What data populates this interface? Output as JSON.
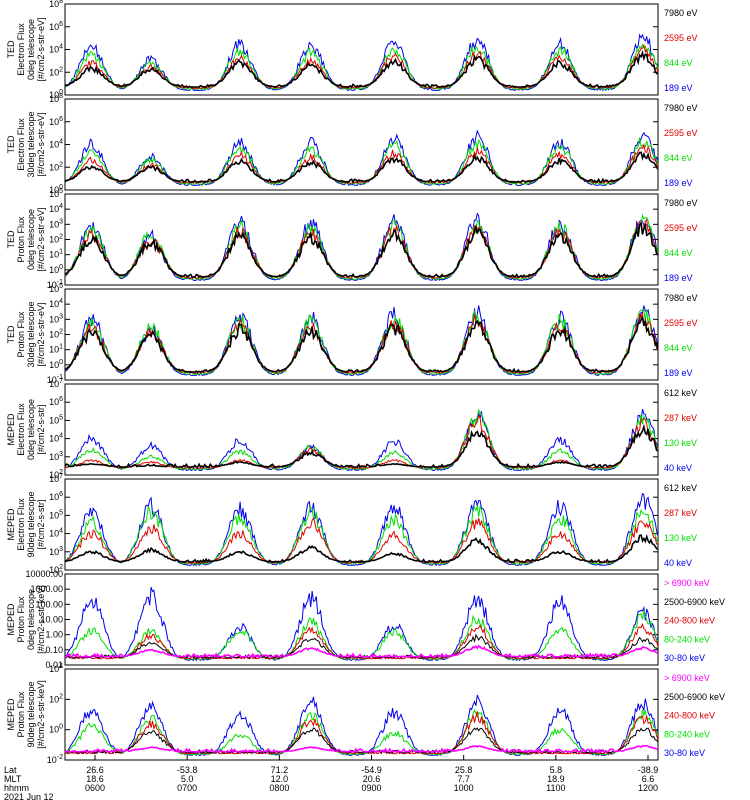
{
  "chart_data": [
    {
      "type": "line",
      "ylabel": [
        "TED",
        "Electron Flux",
        "0deg telescope",
        "[#/cm2-s-str-eV]"
      ],
      "y_ticks": [
        "10^0",
        "10^2",
        "10^4",
        "10^6",
        "10^8"
      ],
      "y_log_range": [
        0,
        8
      ],
      "series": [
        {
          "name": "7980 eV",
          "color": "#000000",
          "peaks": [
            2.3,
            2.2,
            2.8,
            2.6,
            2.9,
            3.1,
            2.8,
            3.4
          ]
        },
        {
          "name": "2595 eV",
          "color": "#e00000",
          "peaks": [
            2.8,
            2.4,
            3.2,
            3.0,
            3.4,
            3.6,
            3.3,
            3.9
          ]
        },
        {
          "name": "844 eV",
          "color": "#00dd00",
          "peaks": [
            3.5,
            2.8,
            3.9,
            3.7,
            4.1,
            4.3,
            4.0,
            4.5
          ]
        },
        {
          "name": "189 eV",
          "color": "#0000ee",
          "peaks": [
            4.2,
            3.1,
            4.5,
            4.3,
            4.6,
            4.8,
            4.4,
            5.0
          ]
        }
      ]
    },
    {
      "type": "line",
      "ylabel": [
        "TED",
        "Electron Flux",
        "30deg telescope",
        "[#/cm2-s-str-eV]"
      ],
      "y_ticks": [
        "10^0",
        "10^2",
        "10^4",
        "10^6",
        "10^8"
      ],
      "y_log_range": [
        0,
        8
      ],
      "series": [
        {
          "name": "7980 eV",
          "color": "#000000",
          "peaks": [
            2.0,
            2.0,
            2.5,
            2.4,
            2.7,
            2.8,
            2.6,
            3.1
          ]
        },
        {
          "name": "2595 eV",
          "color": "#e00000",
          "peaks": [
            2.6,
            2.2,
            3.0,
            2.8,
            3.2,
            3.4,
            3.1,
            3.7
          ]
        },
        {
          "name": "844 eV",
          "color": "#00dd00",
          "peaks": [
            3.3,
            2.6,
            3.7,
            3.5,
            3.9,
            4.1,
            3.8,
            4.3
          ]
        },
        {
          "name": "189 eV",
          "color": "#0000ee",
          "peaks": [
            4.0,
            2.9,
            4.3,
            4.1,
            4.4,
            4.6,
            4.2,
            4.8
          ]
        }
      ]
    },
    {
      "type": "line",
      "ylabel": [
        "TED",
        "Proton Flux",
        "0deg telescope",
        "[#/cm2-s-str-eV]"
      ],
      "y_ticks": [
        "10^-1",
        "10^0",
        "10^1",
        "10^2",
        "10^3",
        "10^4",
        "10^5"
      ],
      "y_log_range": [
        -1,
        5
      ],
      "series": [
        {
          "name": "7980 eV",
          "color": "#000000",
          "peaks": [
            2.0,
            1.8,
            2.2,
            2.1,
            2.3,
            2.5,
            2.2,
            2.7
          ]
        },
        {
          "name": "2595 eV",
          "color": "#e00000",
          "peaks": [
            2.3,
            2.0,
            2.5,
            2.4,
            2.6,
            2.8,
            2.5,
            3.0
          ]
        },
        {
          "name": "844 eV",
          "color": "#00dd00",
          "peaks": [
            2.6,
            2.4,
            2.8,
            2.7,
            2.9,
            3.0,
            2.8,
            3.2
          ]
        },
        {
          "name": "189 eV",
          "color": "#0000ee",
          "peaks": [
            2.9,
            2.2,
            3.1,
            3.0,
            3.2,
            3.3,
            3.0,
            3.4
          ]
        }
      ]
    },
    {
      "type": "line",
      "ylabel": [
        "TED",
        "Proton Flux",
        "30deg telescope",
        "[#/cm2-s-str-eV]"
      ],
      "y_ticks": [
        "10^-1",
        "10^0",
        "10^1",
        "10^2",
        "10^3",
        "10^4",
        "10^5"
      ],
      "y_log_range": [
        -1,
        5
      ],
      "series": [
        {
          "name": "7980 eV",
          "color": "#000000",
          "peaks": [
            2.1,
            1.9,
            2.3,
            2.2,
            2.4,
            2.6,
            2.3,
            2.8
          ]
        },
        {
          "name": "2595 eV",
          "color": "#e00000",
          "peaks": [
            2.4,
            2.1,
            2.6,
            2.5,
            2.7,
            2.9,
            2.6,
            3.1
          ]
        },
        {
          "name": "844 eV",
          "color": "#00dd00",
          "peaks": [
            2.7,
            2.5,
            2.9,
            2.8,
            3.0,
            3.1,
            2.9,
            3.3
          ]
        },
        {
          "name": "189 eV",
          "color": "#0000ee",
          "peaks": [
            3.0,
            2.3,
            3.2,
            3.1,
            3.3,
            3.4,
            3.1,
            3.5
          ]
        }
      ]
    },
    {
      "type": "line",
      "ylabel": [
        "MEPED",
        "Electron Flux",
        "0deg telescope",
        "[#/cm2-s-str]"
      ],
      "y_ticks": [
        "10^2",
        "10^3",
        "10^4",
        "10^5",
        "10^6",
        "10^7"
      ],
      "y_log_range": [
        2,
        7
      ],
      "series": [
        {
          "name": "612 keV",
          "color": "#000000",
          "peaks": [
            2.6,
            2.5,
            2.7,
            3.2,
            2.6,
            4.3,
            2.7,
            4.5
          ]
        },
        {
          "name": "287 keV",
          "color": "#e00000",
          "peaks": [
            2.8,
            2.7,
            2.8,
            3.4,
            2.8,
            5.0,
            2.8,
            4.8
          ]
        },
        {
          "name": "130 keV",
          "color": "#00dd00",
          "peaks": [
            3.4,
            3.0,
            3.3,
            3.5,
            3.2,
            5.2,
            3.3,
            5.0
          ]
        },
        {
          "name": "40 keV",
          "color": "#0000ee",
          "peaks": [
            4.0,
            3.6,
            3.9,
            3.5,
            3.8,
            5.3,
            3.9,
            5.3
          ]
        }
      ]
    },
    {
      "type": "line",
      "ylabel": [
        "MEPED",
        "Electron Flux",
        "90deg telescope",
        "[#/cm2-s-str]"
      ],
      "y_ticks": [
        "10^2",
        "10^3",
        "10^4",
        "10^5",
        "10^6",
        "10^7"
      ],
      "y_log_range": [
        2,
        7
      ],
      "series": [
        {
          "name": "612 keV",
          "color": "#000000",
          "peaks": [
            3.0,
            3.1,
            3.0,
            3.2,
            2.9,
            3.6,
            3.0,
            3.8
          ]
        },
        {
          "name": "287 keV",
          "color": "#e00000",
          "peaks": [
            4.0,
            4.3,
            4.0,
            4.6,
            3.9,
            4.6,
            4.0,
            4.6
          ]
        },
        {
          "name": "130 keV",
          "color": "#00dd00",
          "peaks": [
            4.6,
            5.2,
            4.8,
            5.1,
            4.7,
            5.2,
            4.8,
            5.2
          ]
        },
        {
          "name": "40 keV",
          "color": "#0000ee",
          "peaks": [
            5.2,
            5.5,
            5.3,
            5.4,
            5.4,
            5.6,
            5.5,
            5.9
          ]
        }
      ]
    },
    {
      "type": "line",
      "ylabel": [
        "MEPED",
        "Proton Flux",
        "0deg telescope",
        "[#/cm2-s-str-keV]"
      ],
      "y_ticks": [
        "0.01",
        "0.10",
        "1.00",
        "10.00",
        "100.00",
        "1000.00",
        "10000.00"
      ],
      "y_log_range": [
        -2,
        4
      ],
      "series": [
        {
          "name": "> 6900 keV",
          "color": "#ff00ff",
          "peaks": [
            -2,
            -1.0,
            -2,
            -0.9,
            -2,
            -0.8,
            -2,
            -0.9
          ]
        },
        {
          "name": "2500-6900 keV",
          "color": "#000000",
          "peaks": [
            -2,
            -0.5,
            -2,
            -0.3,
            -2,
            -0.2,
            -2,
            -0.3
          ]
        },
        {
          "name": "240-800 keV",
          "color": "#e00000",
          "peaks": [
            -2,
            -0.1,
            -2,
            0.3,
            -2,
            0.5,
            -2,
            0.4
          ]
        },
        {
          "name": "80-240 keV",
          "color": "#00dd00",
          "peaks": [
            0.3,
            0.2,
            0.3,
            0.8,
            0.2,
            1.0,
            0.3,
            1.2
          ]
        },
        {
          "name": "30-80 keV",
          "color": "#0000ee",
          "peaks": [
            2.2,
            2.6,
            0.5,
            2.4,
            0.6,
            2.3,
            2.1,
            1.4
          ]
        }
      ]
    },
    {
      "type": "line",
      "ylabel": [
        "MEPED",
        "Proton Flux",
        "90deg telescope",
        "[#/cm2-s-str-keV]"
      ],
      "y_ticks": [
        "10^-2",
        "10^0",
        "10^2",
        "10^4"
      ],
      "y_log_range": [
        -3,
        5
      ],
      "series": [
        {
          "name": "> 6900 keV",
          "color": "#ff00ff",
          "peaks": [
            -3,
            -1.9,
            -3,
            -1.9,
            -3,
            -1.8,
            -3,
            -1.8
          ]
        },
        {
          "name": "2500-6900 keV",
          "color": "#000000",
          "peaks": [
            -3,
            -0.5,
            -3,
            -0.3,
            -3,
            -0.2,
            -3,
            -0.3
          ]
        },
        {
          "name": "240-800 keV",
          "color": "#e00000",
          "peaks": [
            -3,
            0.2,
            -3,
            0.5,
            -3,
            0.8,
            -3,
            0.7
          ]
        },
        {
          "name": "80-240 keV",
          "color": "#00dd00",
          "peaks": [
            0.0,
            0.6,
            -0.8,
            0.9,
            -0.6,
            1.2,
            -0.3,
            1.1
          ]
        },
        {
          "name": "30-80 keV",
          "color": "#0000ee",
          "peaks": [
            1.4,
            1.8,
            1.0,
            2.0,
            1.2,
            2.2,
            1.3,
            2.0
          ]
        }
      ]
    }
  ],
  "x_axis": {
    "row_labels": [
      "Lat",
      "MLT",
      "hhmm"
    ],
    "date": "2021 Jun 12",
    "columns": [
      {
        "lat": "26.6",
        "mlt": "18.6",
        "hhmm": "0600"
      },
      {
        "lat": "-53.8",
        "mlt": "5.0",
        "hhmm": "0700"
      },
      {
        "lat": "71.2",
        "mlt": "12.0",
        "hhmm": "0800"
      },
      {
        "lat": "-54.9",
        "mlt": "20.6",
        "hhmm": "0900"
      },
      {
        "lat": "25.8",
        "mlt": "7.7",
        "hhmm": "1000"
      },
      {
        "lat": "5.8",
        "mlt": "18.9",
        "hhmm": "1100"
      },
      {
        "lat": "-38.9",
        "mlt": "6.6",
        "hhmm": "1200"
      }
    ]
  }
}
